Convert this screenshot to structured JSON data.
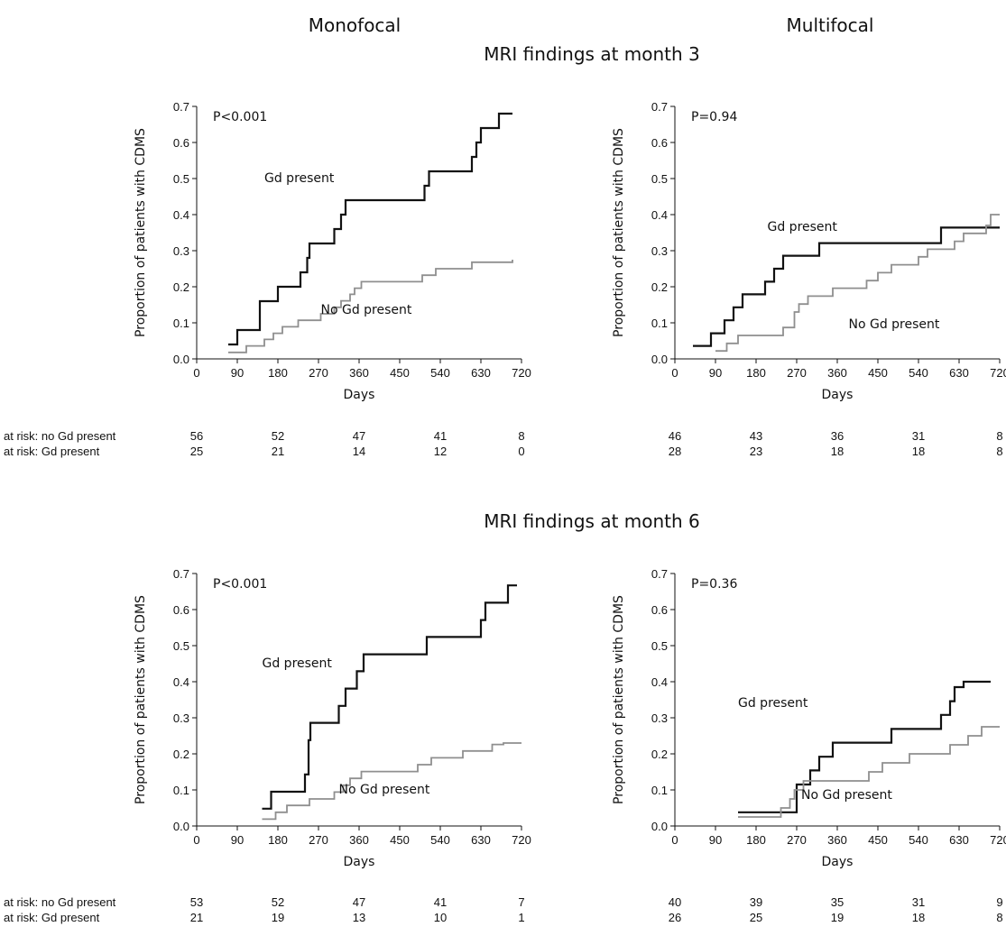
{
  "headings": {
    "monofocal": "Monofocal",
    "multifocal": "Multifocal",
    "month3": "MRI findings at month 3",
    "month6": "MRI findings at month 6"
  },
  "risk_labels": {
    "no_gd": "at risk: no Gd present",
    "gd": "at risk: Gd present"
  },
  "colors": {
    "gd": "#111111",
    "no_gd": "#8f8f8f"
  },
  "chart_data": [
    {
      "type": "line",
      "panel": "Monofocal, MRI findings at month 3",
      "xlabel": "Days",
      "ylabel": "Proportion of patients with CDMS",
      "xlim": [
        0,
        720
      ],
      "ylim": [
        0,
        0.7
      ],
      "xticks": [
        0,
        90,
        180,
        270,
        360,
        450,
        540,
        630,
        720
      ],
      "yticks": [
        "0.0",
        "0.1",
        "0.2",
        "0.3",
        "0.4",
        "0.5",
        "0.6",
        "0.7"
      ],
      "annotation": "P<0.001",
      "series": [
        {
          "name": "Gd present",
          "key": "gd",
          "x": [
            70,
            90,
            140,
            180,
            230,
            245,
            250,
            255,
            270,
            305,
            320,
            330,
            340,
            505,
            515,
            610,
            620,
            630,
            650,
            670,
            700
          ],
          "y": [
            0.04,
            0.08,
            0.16,
            0.2,
            0.24,
            0.28,
            0.32,
            0.32,
            0.32,
            0.36,
            0.4,
            0.44,
            0.44,
            0.48,
            0.52,
            0.56,
            0.6,
            0.64,
            0.64,
            0.68,
            0.68
          ]
        },
        {
          "name": "No Gd present",
          "key": "no_gd",
          "x": [
            70,
            110,
            150,
            170,
            190,
            225,
            275,
            305,
            320,
            340,
            350,
            365,
            375,
            500,
            530,
            610,
            700
          ],
          "y": [
            0.018,
            0.036,
            0.054,
            0.071,
            0.089,
            0.107,
            0.125,
            0.143,
            0.161,
            0.179,
            0.196,
            0.214,
            0.214,
            0.232,
            0.25,
            0.268,
            0.275
          ]
        }
      ],
      "risk": {
        "no_gd": [
          "56",
          "52",
          "47",
          "41",
          "8"
        ],
        "gd": [
          "25",
          "21",
          "14",
          "12",
          "0"
        ]
      }
    },
    {
      "type": "line",
      "panel": "Multifocal, MRI findings at month 3",
      "xlabel": "Days",
      "ylabel": "Proportion of patients with CDMS",
      "xlim": [
        0,
        720
      ],
      "ylim": [
        0,
        0.7
      ],
      "xticks": [
        0,
        90,
        180,
        270,
        360,
        450,
        540,
        630,
        720
      ],
      "yticks": [
        "0.0",
        "0.1",
        "0.2",
        "0.3",
        "0.4",
        "0.5",
        "0.6",
        "0.7"
      ],
      "annotation": "P=0.94",
      "series": [
        {
          "name": "Gd present",
          "key": "gd",
          "x": [
            40,
            80,
            110,
            130,
            150,
            200,
            220,
            240,
            280,
            320,
            330,
            580,
            590,
            720
          ],
          "y": [
            0.036,
            0.071,
            0.107,
            0.143,
            0.179,
            0.214,
            0.25,
            0.286,
            0.286,
            0.321,
            0.321,
            0.321,
            0.364,
            0.364
          ]
        },
        {
          "name": "No Gd present",
          "key": "no_gd",
          "x": [
            90,
            115,
            140,
            240,
            265,
            275,
            295,
            325,
            350,
            425,
            450,
            480,
            540,
            560,
            620,
            640,
            690,
            700,
            720
          ],
          "y": [
            0.022,
            0.043,
            0.065,
            0.087,
            0.13,
            0.152,
            0.174,
            0.174,
            0.196,
            0.217,
            0.239,
            0.261,
            0.283,
            0.304,
            0.326,
            0.348,
            0.37,
            0.4,
            0.4
          ]
        }
      ],
      "risk": {
        "no_gd": [
          "46",
          "43",
          "36",
          "31",
          "8"
        ],
        "gd": [
          "28",
          "23",
          "18",
          "18",
          "8"
        ]
      }
    },
    {
      "type": "line",
      "panel": "Monofocal, MRI findings at month 6",
      "xlabel": "Days",
      "ylabel": "Proportion of patients with CDMS",
      "xlim": [
        0,
        720
      ],
      "ylim": [
        0,
        0.7
      ],
      "xticks": [
        0,
        90,
        180,
        270,
        360,
        450,
        540,
        630,
        720
      ],
      "yticks": [
        "0.0",
        "0.1",
        "0.2",
        "0.3",
        "0.4",
        "0.5",
        "0.6",
        "0.7"
      ],
      "annotation": "P<0.001",
      "series": [
        {
          "name": "Gd present",
          "key": "gd",
          "x": [
            145,
            165,
            240,
            248,
            252,
            260,
            315,
            330,
            355,
            370,
            380,
            510,
            630,
            640,
            690,
            710
          ],
          "y": [
            0.048,
            0.095,
            0.143,
            0.238,
            0.286,
            0.286,
            0.333,
            0.381,
            0.429,
            0.476,
            0.476,
            0.524,
            0.571,
            0.619,
            0.667,
            0.667
          ]
        },
        {
          "name": "No Gd present",
          "key": "no_gd",
          "x": [
            145,
            175,
            200,
            250,
            305,
            325,
            340,
            355,
            365,
            380,
            490,
            520,
            590,
            655,
            680,
            720
          ],
          "y": [
            0.019,
            0.038,
            0.057,
            0.075,
            0.094,
            0.113,
            0.132,
            0.132,
            0.151,
            0.151,
            0.17,
            0.189,
            0.208,
            0.226,
            0.23,
            0.23
          ]
        }
      ],
      "risk": {
        "no_gd": [
          "53",
          "52",
          "47",
          "41",
          "7"
        ],
        "gd": [
          "21",
          "19",
          "13",
          "10",
          "1"
        ]
      }
    },
    {
      "type": "line",
      "panel": "Multifocal, MRI findings at month 6",
      "xlabel": "Days",
      "ylabel": "Proportion of patients with CDMS",
      "xlim": [
        0,
        720
      ],
      "ylim": [
        0,
        0.7
      ],
      "xticks": [
        0,
        90,
        180,
        270,
        360,
        450,
        540,
        630,
        720
      ],
      "yticks": [
        "0.0",
        "0.1",
        "0.2",
        "0.3",
        "0.4",
        "0.5",
        "0.6",
        "0.7"
      ],
      "annotation": "P=0.36",
      "series": [
        {
          "name": "Gd present",
          "key": "gd",
          "x": [
            140,
            250,
            270,
            300,
            320,
            350,
            480,
            590,
            610,
            620,
            640,
            700
          ],
          "y": [
            0.038,
            0.038,
            0.115,
            0.154,
            0.192,
            0.231,
            0.269,
            0.308,
            0.346,
            0.385,
            0.4,
            0.4
          ]
        },
        {
          "name": "No Gd present",
          "key": "no_gd",
          "x": [
            140,
            235,
            255,
            265,
            285,
            430,
            460,
            520,
            610,
            650,
            680,
            720
          ],
          "y": [
            0.025,
            0.05,
            0.075,
            0.1,
            0.125,
            0.15,
            0.175,
            0.2,
            0.225,
            0.25,
            0.275,
            0.275
          ]
        }
      ],
      "risk": {
        "no_gd": [
          "40",
          "39",
          "35",
          "31",
          "9"
        ],
        "gd": [
          "26",
          "25",
          "19",
          "18",
          "8"
        ]
      }
    }
  ]
}
